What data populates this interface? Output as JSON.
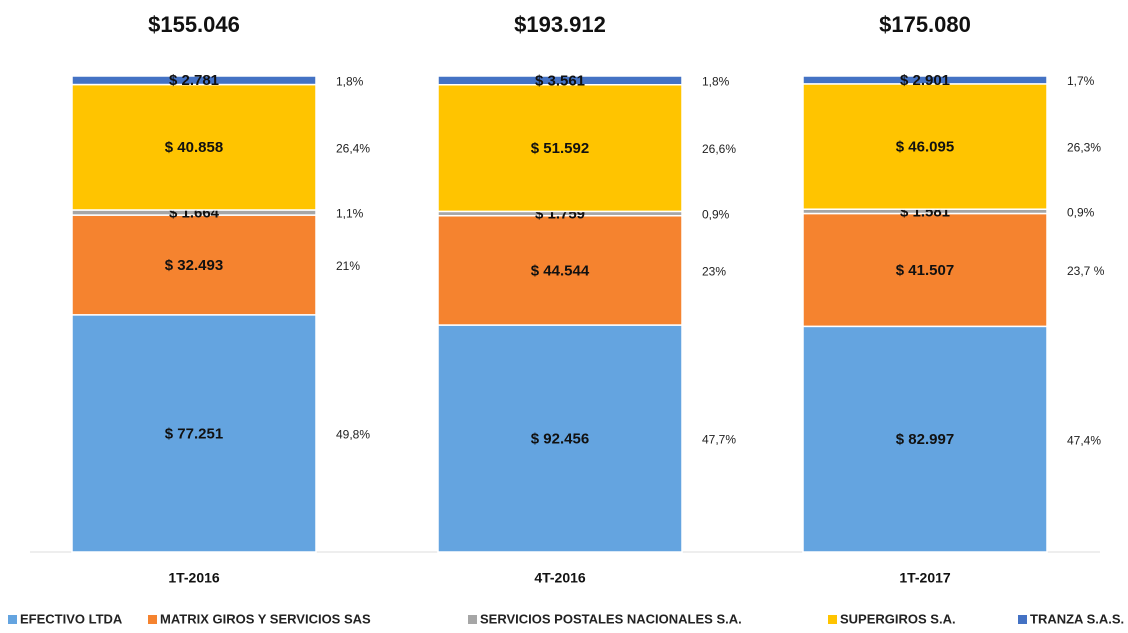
{
  "chart_data": {
    "type": "stacked_bar_100",
    "categories": [
      "1T-2016",
      "4T-2016",
      "1T-2017"
    ],
    "totals": [
      155046,
      193912,
      175080
    ],
    "total_labels": [
      "$155.046",
      "$193.912",
      "$175.080"
    ],
    "series": [
      {
        "name": "EFECTIVO LTDA",
        "color": "#64a4e0",
        "values": [
          77251,
          92456,
          82997
        ],
        "value_labels": [
          "$ 77.251",
          "$ 92.456",
          "$ 82.997"
        ],
        "share_labels": [
          "49,8%",
          "47,7%",
          "47,4%"
        ]
      },
      {
        "name": "MATRIX GIROS Y SERVICIOS SAS",
        "color": "#f5832f",
        "values": [
          32493,
          44544,
          41507
        ],
        "value_labels": [
          "$ 32.493",
          "$ 44.544",
          "$ 41.507"
        ],
        "share_labels": [
          "21%",
          "23%",
          "23,7 %"
        ]
      },
      {
        "name": "SERVICIOS POSTALES NACIONALES S.A.",
        "color": "#a6a6a6",
        "values": [
          1664,
          1759,
          1581
        ],
        "value_labels": [
          "$ 1.664",
          "$ 1.759",
          "$ 1.581"
        ],
        "share_labels": [
          "1,1%",
          "0,9%",
          "0,9%"
        ]
      },
      {
        "name": "SUPERGIROS S.A.",
        "color": "#ffc400",
        "values": [
          40858,
          51592,
          46095
        ],
        "value_labels": [
          "$ 40.858",
          "$ 51.592",
          "$ 46.095"
        ],
        "share_labels": [
          "26,4%",
          "26,6%",
          "26,3%"
        ]
      },
      {
        "name": "TRANZA S.A.S.",
        "color": "#4472c4",
        "values": [
          2781,
          3561,
          2901
        ],
        "value_labels": [
          "$ 2.781",
          "$ 3.561",
          "$ 2.901"
        ],
        "share_labels": [
          "1,8%",
          "1,8%",
          "1,7%"
        ]
      }
    ]
  }
}
